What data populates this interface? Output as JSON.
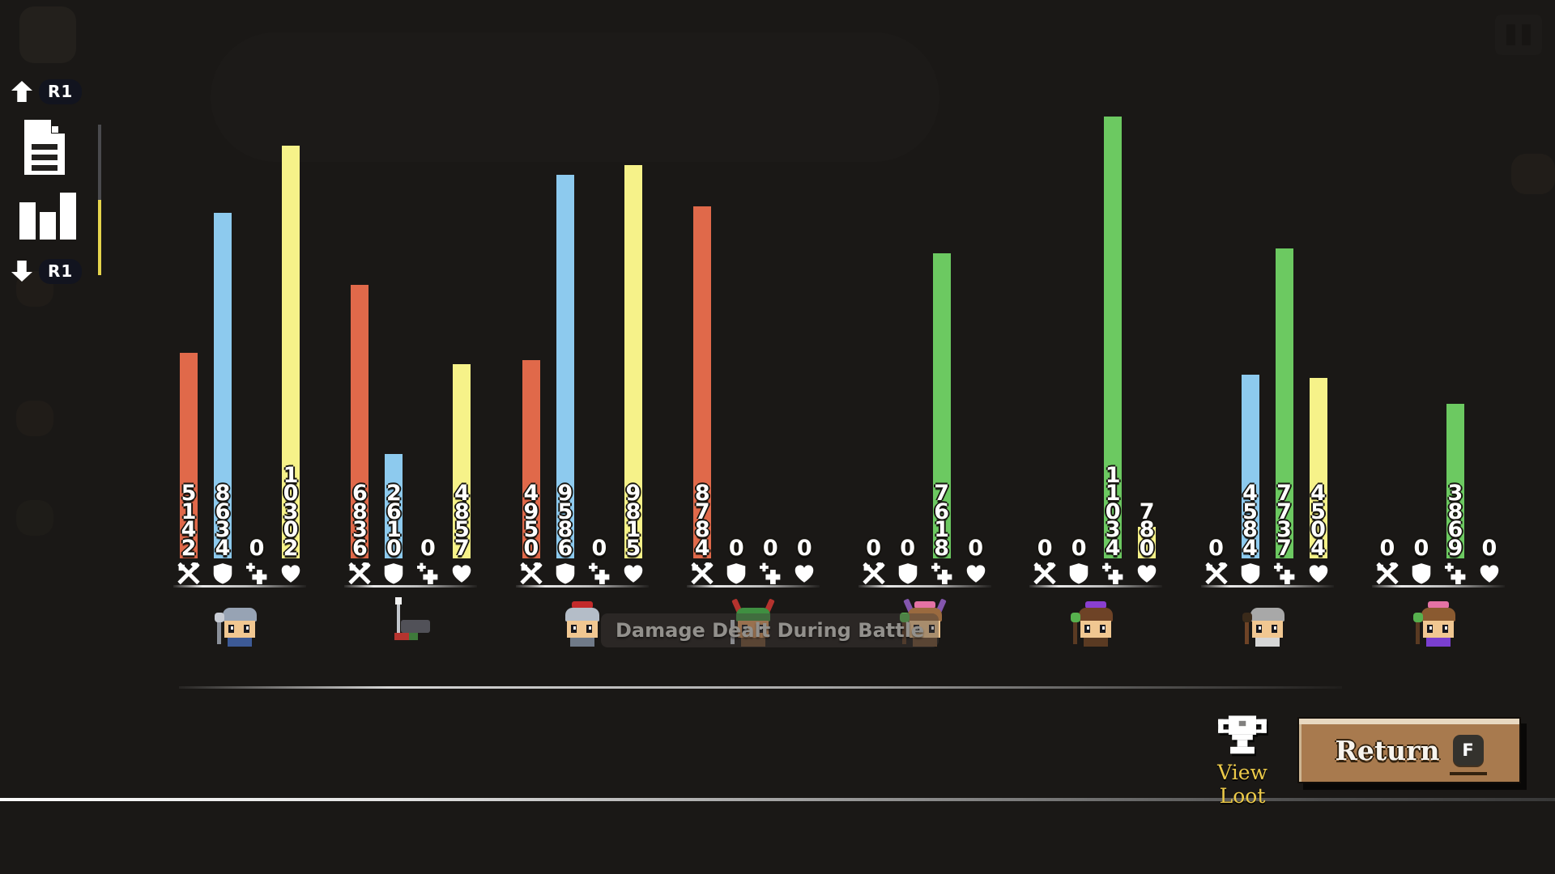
{
  "hud": {
    "page_up_key": "R1",
    "page_down_key": "R1",
    "nav_icons": [
      "document-icon",
      "bar-chart-icon"
    ],
    "pause_icon": "pause-icon"
  },
  "tooltip": {
    "text": "Damage Dealt During Battle"
  },
  "footer": {
    "view_loot_label": "View Loot",
    "view_loot_icon": "trophy-icon",
    "return_label": "Return",
    "return_key": "F"
  },
  "chart_data": {
    "type": "bar",
    "title_tooltip": "Damage Dealt During Battle",
    "categories": [
      "character-1",
      "character-2",
      "character-3",
      "character-4",
      "character-5",
      "character-6",
      "character-7",
      "character-8"
    ],
    "series": [
      {
        "name": "damage-dealt",
        "icon": "crossed-weapons-icon",
        "color": "#e0694a",
        "values": [
          5142,
          6836,
          4950,
          8784,
          0,
          0,
          0,
          0
        ]
      },
      {
        "name": "damage-blocked",
        "icon": "shield-icon",
        "color": "#8dcaee",
        "values": [
          8634,
          2610,
          9586,
          0,
          0,
          0,
          4584,
          0
        ]
      },
      {
        "name": "healing-done",
        "icon": "heal-cross-icon",
        "color": "#6cc961",
        "values": [
          0,
          0,
          0,
          0,
          7618,
          11034,
          7737,
          3869
        ]
      },
      {
        "name": "heart-stat",
        "icon": "heart-icon",
        "color": "#f6f289",
        "values": [
          10302,
          4857,
          9815,
          0,
          0,
          780,
          4504,
          0
        ]
      }
    ],
    "value_labels_on_bars": true,
    "max_value": 11034,
    "legend_position": "none",
    "grid": false
  },
  "characters": [
    {
      "name": "miner-dwarf",
      "pose": "stand",
      "hat": "#97a3b4",
      "face": "#f1c791",
      "body": "#3d5a96",
      "staff": "#8a8f99",
      "staffTop": "#c8ccd4"
    },
    {
      "name": "fallen-spearman",
      "pose": "fallen",
      "armor": "#515158",
      "red": "#b5342f",
      "green": "#3e7a3b"
    },
    {
      "name": "knight-red-plume",
      "pose": "stand",
      "hat": "#b4bdc8",
      "plume": "#c32a2a",
      "face": "#f1c791",
      "body": "#707a88"
    },
    {
      "name": "antler-hood-ranger",
      "pose": "stand",
      "hat": "#3f8f41",
      "antlers": "#b5332e",
      "face": "#d8965d",
      "body": "#6b4a2f",
      "staff": "#bfc4cc"
    },
    {
      "name": "antler-druid",
      "pose": "stand",
      "hat": "#9a6a3f",
      "antlers": "#8456ae",
      "plume": "#e472a4",
      "face": "#f1c791",
      "body": "#6b4a2f",
      "staff": "#5a3a22",
      "staffTop": "#57b14e"
    },
    {
      "name": "purple-streak-mage",
      "pose": "stand",
      "hat": "#6e4326",
      "plume": "#8a3fd0",
      "face": "#f1c791",
      "body": "#5a3a22",
      "staff": "#5a3a22",
      "staffTop": "#57b14e"
    },
    {
      "name": "elder-wizard",
      "pose": "stand",
      "hat": "#a8a8a8",
      "face": "#f1c791",
      "body": "#d6d6d6",
      "staff": "#6e4326",
      "staffTop": "#3a2a1a"
    },
    {
      "name": "pink-band-mage",
      "pose": "stand",
      "hat": "#8a5a30",
      "plume": "#e472a4",
      "face": "#f1c791",
      "body": "#7a3fd0",
      "staff": "#5a3a22",
      "staffTop": "#57b14e"
    }
  ]
}
